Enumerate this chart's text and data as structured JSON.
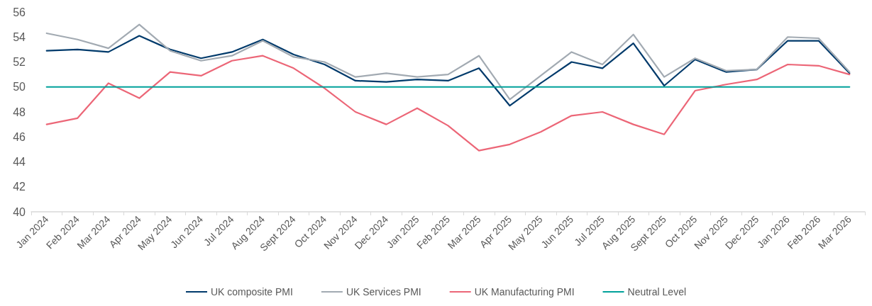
{
  "chart_data": {
    "type": "line",
    "categories": [
      "Jan 2024",
      "Feb 2024",
      "Mar 2024",
      "Apr 2024",
      "May 2024",
      "Jun 2024",
      "Jul 2024",
      "Aug 2024",
      "Sept 2024",
      "Oct 2024",
      "Nov 2024",
      "Dec 2024",
      "Jan 2025",
      "Feb 2025",
      "Mar 2025",
      "Apr 2025",
      "May 2025",
      "Jun 2025",
      "Jul 2025",
      "Aug 2025",
      "Sept 2025",
      "Oct 2025",
      "Nov 2025",
      "Dec 2025",
      "Jan 2026",
      "Feb 2026",
      "Mar 2026"
    ],
    "series": [
      {
        "name": "UK composite PMI",
        "color": "#003a6b",
        "values": [
          52.9,
          53.0,
          52.8,
          54.1,
          53.0,
          52.3,
          52.8,
          53.8,
          52.6,
          51.8,
          50.5,
          50.4,
          50.6,
          50.5,
          51.5,
          48.5,
          50.3,
          52.0,
          51.5,
          53.5,
          50.1,
          52.2,
          51.2,
          51.4,
          53.7,
          53.7,
          51.1
        ]
      },
      {
        "name": "UK Services PMI",
        "color": "#a2aab2",
        "values": [
          54.3,
          53.8,
          53.1,
          55.0,
          52.9,
          52.1,
          52.5,
          53.7,
          52.4,
          52.0,
          50.8,
          51.1,
          50.8,
          51.0,
          52.5,
          49.0,
          50.9,
          52.8,
          51.8,
          54.2,
          50.8,
          52.3,
          51.3,
          51.4,
          54.0,
          53.9,
          51.2
        ]
      },
      {
        "name": "UK Manufacturing PMI",
        "color": "#ec6677",
        "values": [
          47.0,
          47.5,
          50.3,
          49.1,
          51.2,
          50.9,
          52.1,
          52.5,
          51.5,
          49.9,
          48.0,
          47.0,
          48.3,
          46.9,
          44.9,
          45.4,
          46.4,
          47.7,
          48.0,
          47.0,
          46.2,
          49.7,
          50.2,
          50.6,
          51.8,
          51.7,
          51.0
        ]
      },
      {
        "name": "Neutral Level",
        "color": "#00a19a",
        "values": [
          50,
          50,
          50,
          50,
          50,
          50,
          50,
          50,
          50,
          50,
          50,
          50,
          50,
          50,
          50,
          50,
          50,
          50,
          50,
          50,
          50,
          50,
          50,
          50,
          50,
          50,
          50
        ]
      }
    ],
    "ylim": [
      40,
      56
    ],
    "yticks": [
      40,
      42,
      44,
      46,
      48,
      50,
      52,
      54,
      56
    ],
    "grid": false,
    "legend": "bottom",
    "marker": "none",
    "line_style": "solid"
  }
}
